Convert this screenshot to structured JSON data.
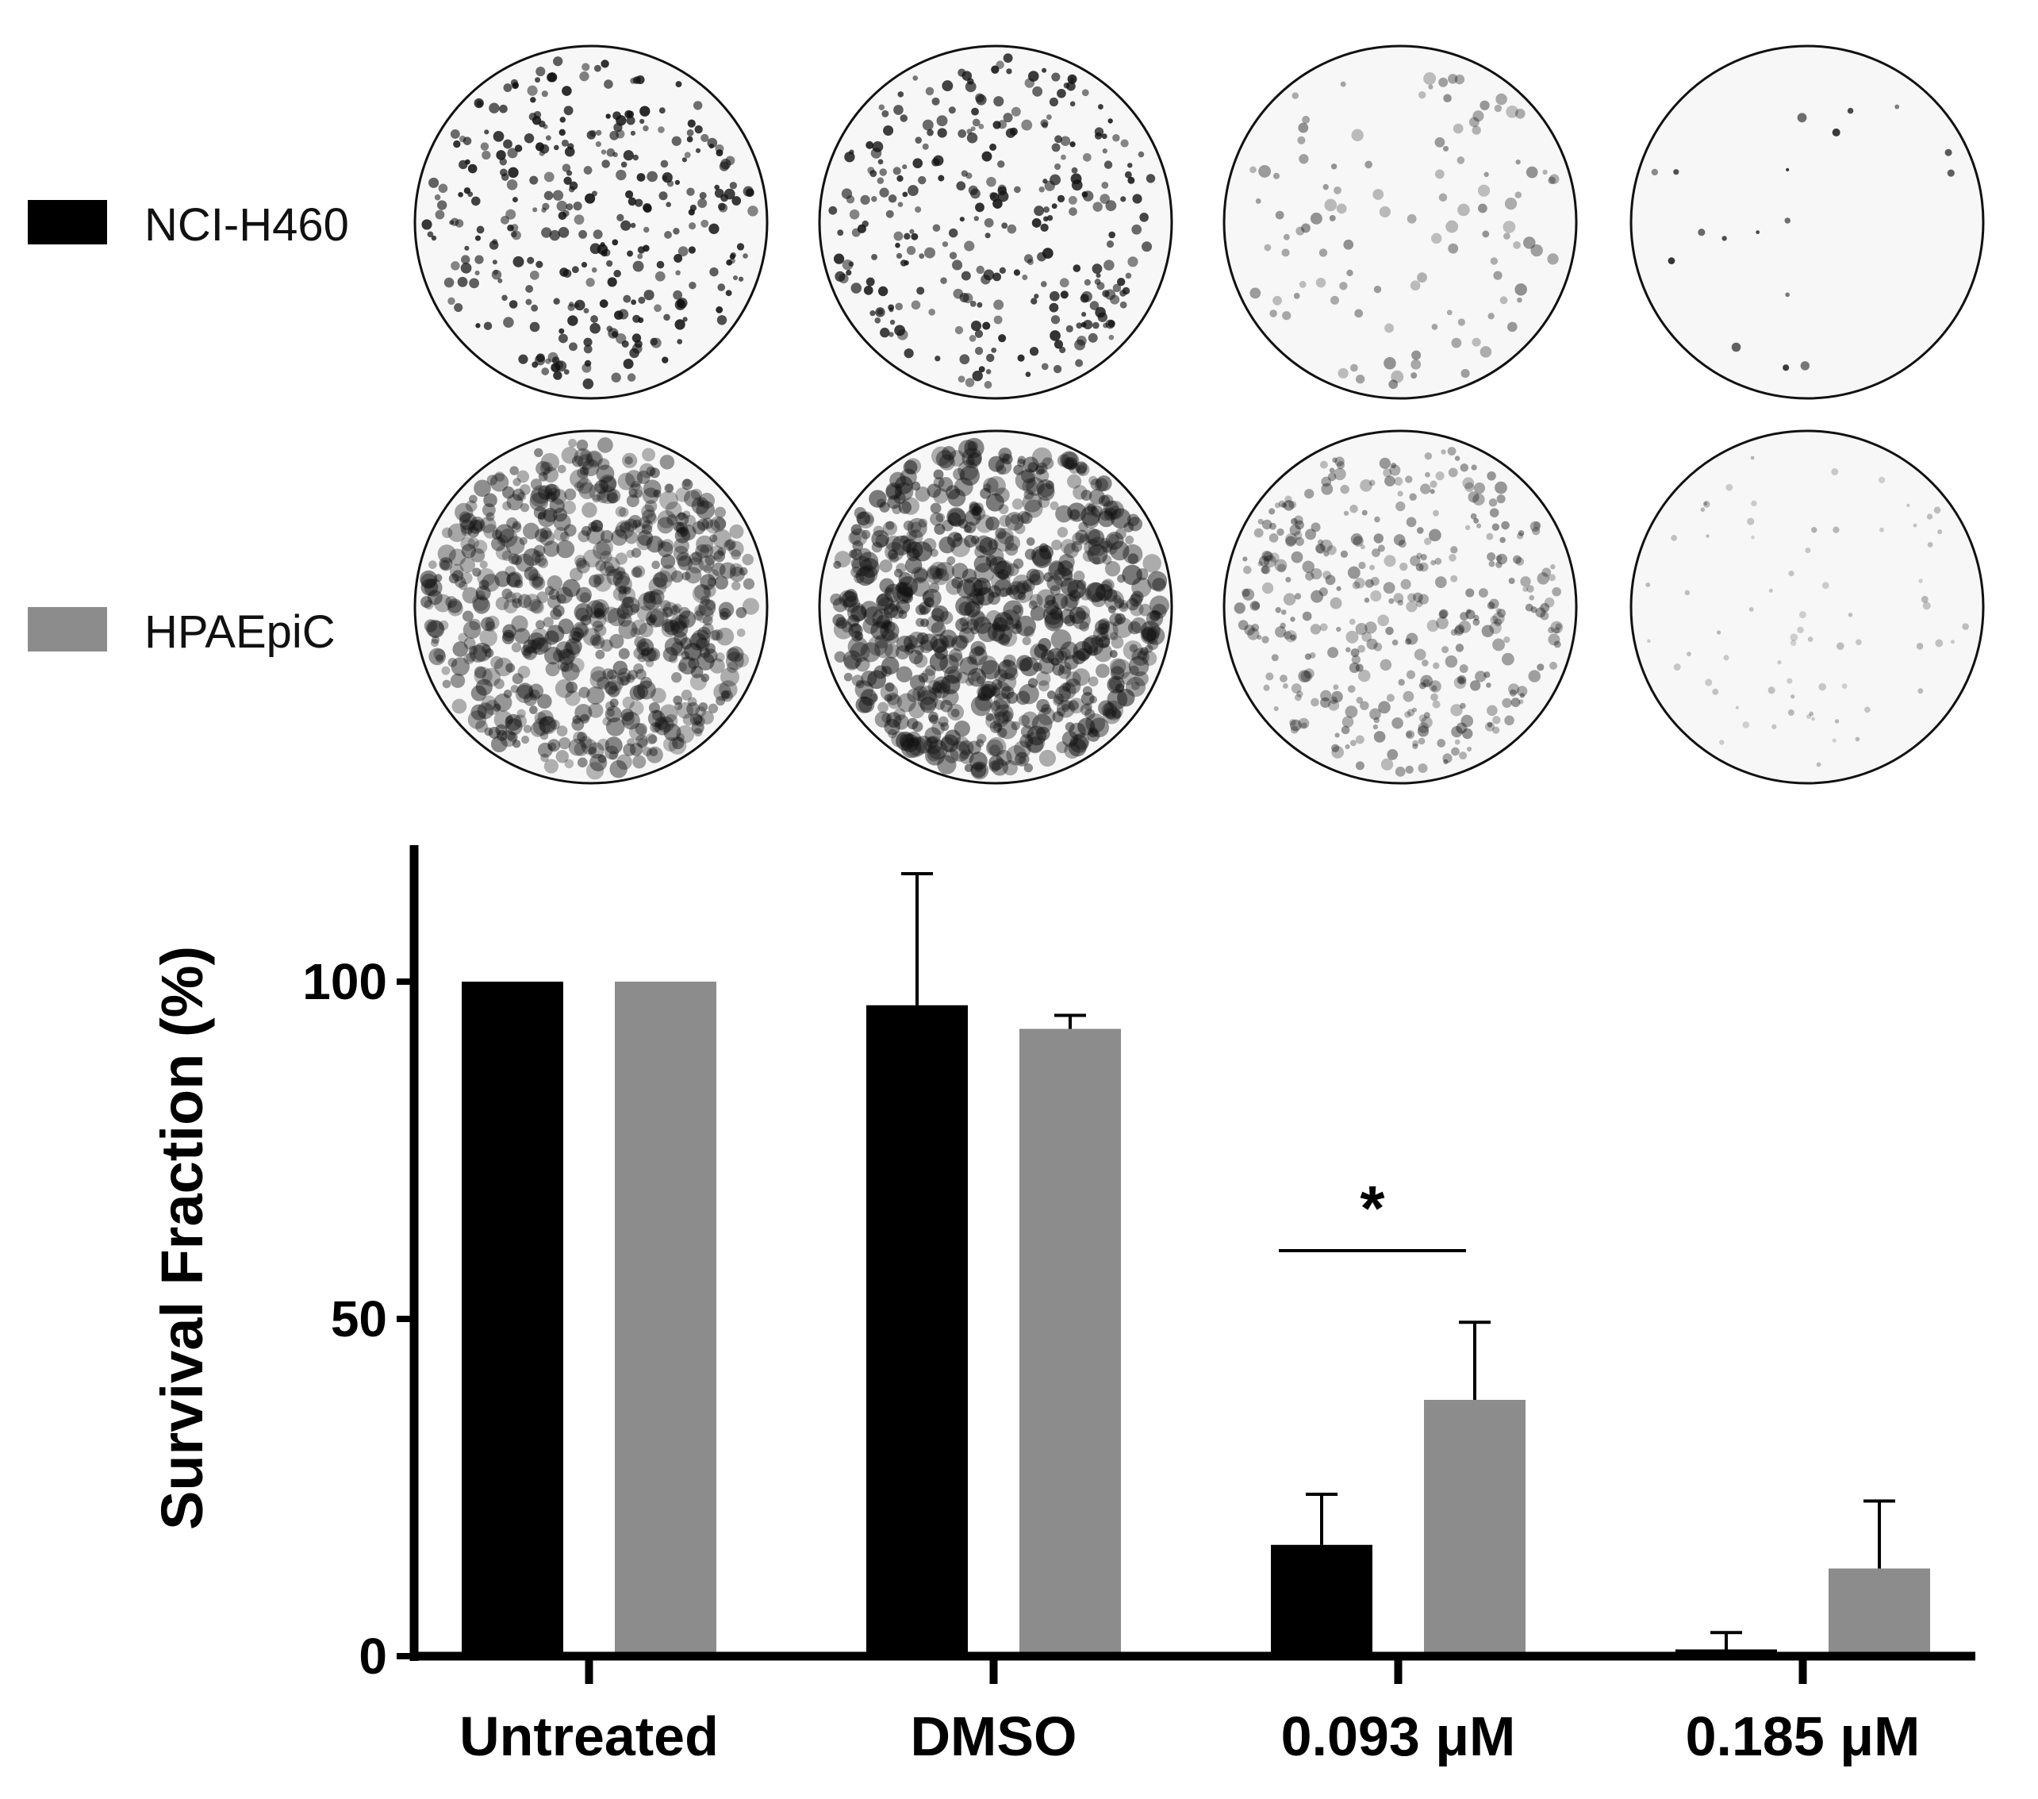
{
  "legend": [
    {
      "label": "NCI-H460",
      "color": "#000000"
    },
    {
      "label": "HPAEpiC",
      "color": "#8c8c8c"
    }
  ],
  "plates": {
    "rows": [
      "NCI-H460",
      "HPAEpiC"
    ],
    "columns": [
      "Untreated",
      "DMSO",
      "0.093 μM",
      "0.185 μM"
    ]
  },
  "chart_data": {
    "type": "bar",
    "categories": [
      "Untreated",
      "DMSO",
      "0.093 μM",
      "0.185 μM"
    ],
    "series": [
      {
        "name": "NCI-H460",
        "color": "#000000",
        "values": [
          100,
          96.5,
          16.5,
          1
        ],
        "errors": [
          0,
          19.5,
          7.5,
          2.5
        ]
      },
      {
        "name": "HPAEpiC",
        "color": "#8c8c8c",
        "values": [
          100,
          93,
          38,
          13
        ],
        "errors": [
          0,
          2,
          11.5,
          10
        ]
      }
    ],
    "ylabel": "Survival Fraction (%)",
    "xlabel": "",
    "yticks": [
      0,
      50,
      100
    ],
    "ylim": [
      0,
      120
    ],
    "significance": [
      {
        "category": "0.093 μM",
        "label": "*"
      }
    ]
  }
}
